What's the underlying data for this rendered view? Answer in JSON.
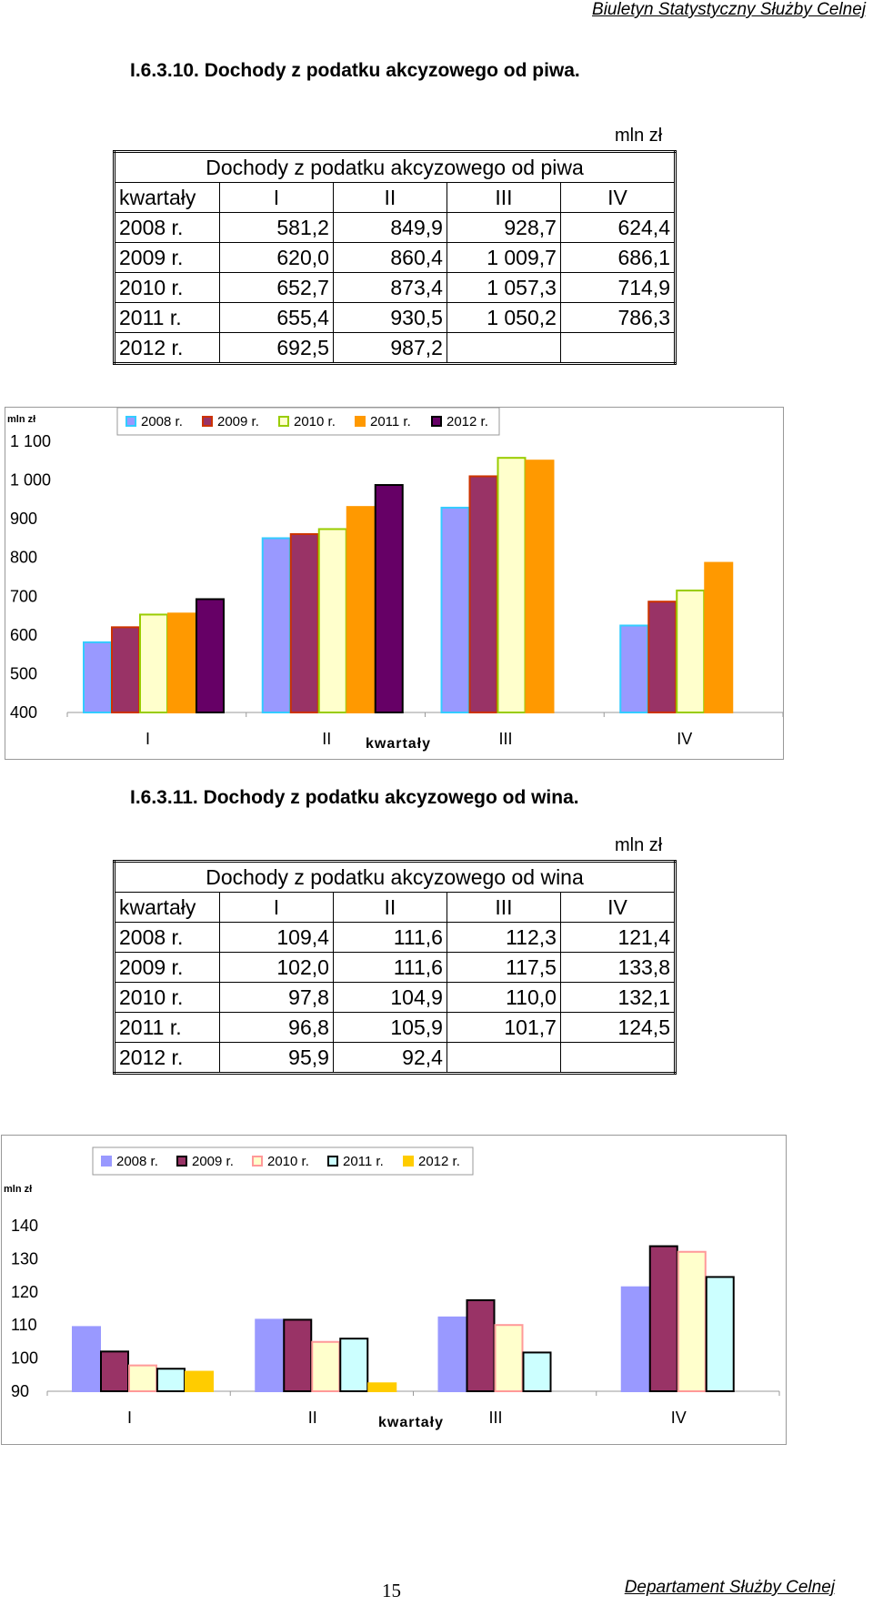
{
  "header": {
    "publication": "Biuletyn Statystyczny Służby Celnej"
  },
  "footer": {
    "page_number": "15",
    "department": "Departament Służby Celnej"
  },
  "beer": {
    "section_title": "I.6.3.10. Dochody z podatku akcyzowego od piwa.",
    "unit": "mln zł",
    "table": {
      "caption": "Dochody z podatku akcyzowego od piwa",
      "corner_label": "kwartały",
      "columns": [
        "I",
        "II",
        "III",
        "IV"
      ],
      "rows": [
        {
          "label": "2008 r.",
          "values": [
            "581,2",
            "849,9",
            "928,7",
            "624,4"
          ]
        },
        {
          "label": "2009 r.",
          "values": [
            "620,0",
            "860,4",
            "1 009,7",
            "686,1"
          ]
        },
        {
          "label": "2010 r.",
          "values": [
            "652,7",
            "873,4",
            "1 057,3",
            "714,9"
          ]
        },
        {
          "label": "2011 r.",
          "values": [
            "655,4",
            "930,5",
            "1 050,2",
            "786,3"
          ]
        },
        {
          "label": "2012 r.",
          "values": [
            "692,5",
            "987,2",
            "",
            ""
          ]
        }
      ]
    }
  },
  "wine": {
    "section_title": "I.6.3.11. Dochody z podatku akcyzowego od wina.",
    "unit": "mln zł",
    "table": {
      "caption": "Dochody z podatku akcyzowego od wina",
      "corner_label": "kwartały",
      "columns": [
        "I",
        "II",
        "III",
        "IV"
      ],
      "rows": [
        {
          "label": "2008 r.",
          "values": [
            "109,4",
            "111,6",
            "112,3",
            "121,4"
          ]
        },
        {
          "label": "2009 r.",
          "values": [
            "102,0",
            "111,6",
            "117,5",
            "133,8"
          ]
        },
        {
          "label": "2010 r.",
          "values": [
            "97,8",
            "104,9",
            "110,0",
            "132,1"
          ]
        },
        {
          "label": "2011 r.",
          "values": [
            "96,8",
            "105,9",
            "101,7",
            "124,5"
          ]
        },
        {
          "label": "2012 r.",
          "values": [
            "95,9",
            "92,4",
            "",
            ""
          ]
        }
      ]
    }
  },
  "chart_data": [
    {
      "type": "bar",
      "ylabel": "mln zł",
      "xlabel": "kwartały",
      "categories": [
        "I",
        "II",
        "III",
        "IV"
      ],
      "ylim": [
        400,
        1100
      ],
      "yticks": [
        "400",
        "500",
        "600",
        "700",
        "800",
        "900",
        "1 000",
        "1 100"
      ],
      "yticks_values": [
        400,
        500,
        600,
        700,
        800,
        900,
        1000,
        1100
      ],
      "legend_position": "top",
      "series": [
        {
          "name": "2008 r.",
          "values": [
            581.2,
            849.9,
            928.7,
            624.4
          ],
          "fill": "#9999ff",
          "stroke": "#33ccff"
        },
        {
          "name": "2009 r.",
          "values": [
            620.0,
            860.4,
            1009.7,
            686.1
          ],
          "fill": "#993366",
          "stroke": "#cc3300"
        },
        {
          "name": "2010 r.",
          "values": [
            652.7,
            873.4,
            1057.3,
            714.9
          ],
          "fill": "#ffffcc",
          "stroke": "#99cc00"
        },
        {
          "name": "2011 r.",
          "values": [
            655.4,
            930.5,
            1050.2,
            786.3
          ],
          "fill": "#ff9900",
          "stroke": "#ff9900"
        },
        {
          "name": "2012 r.",
          "values": [
            692.5,
            987.2,
            null,
            null
          ],
          "fill": "#660066",
          "stroke": "#000000"
        }
      ]
    },
    {
      "type": "bar",
      "ylabel": "mln zł",
      "xlabel": "kwartały",
      "categories": [
        "I",
        "II",
        "III",
        "IV"
      ],
      "ylim": [
        90,
        140
      ],
      "yticks": [
        "90",
        "100",
        "110",
        "120",
        "130",
        "140"
      ],
      "yticks_values": [
        90,
        100,
        110,
        120,
        130,
        140
      ],
      "legend_position": "top",
      "series": [
        {
          "name": "2008 r.",
          "values": [
            109.4,
            111.6,
            112.3,
            121.4
          ],
          "fill": "#9999ff",
          "stroke": "#9999ff"
        },
        {
          "name": "2009 r.",
          "values": [
            102.0,
            111.6,
            117.5,
            133.8
          ],
          "fill": "#993366",
          "stroke": "#000000"
        },
        {
          "name": "2010 r.",
          "values": [
            97.8,
            104.9,
            110.0,
            132.1
          ],
          "fill": "#ffffcc",
          "stroke": "#ff9999"
        },
        {
          "name": "2011 r.",
          "values": [
            96.8,
            105.9,
            101.7,
            124.5
          ],
          "fill": "#ccffff",
          "stroke": "#000000"
        },
        {
          "name": "2012 r.",
          "values": [
            95.9,
            92.4,
            null,
            null
          ],
          "fill": "#ffcc00",
          "stroke": "#ffcc00"
        }
      ]
    }
  ]
}
